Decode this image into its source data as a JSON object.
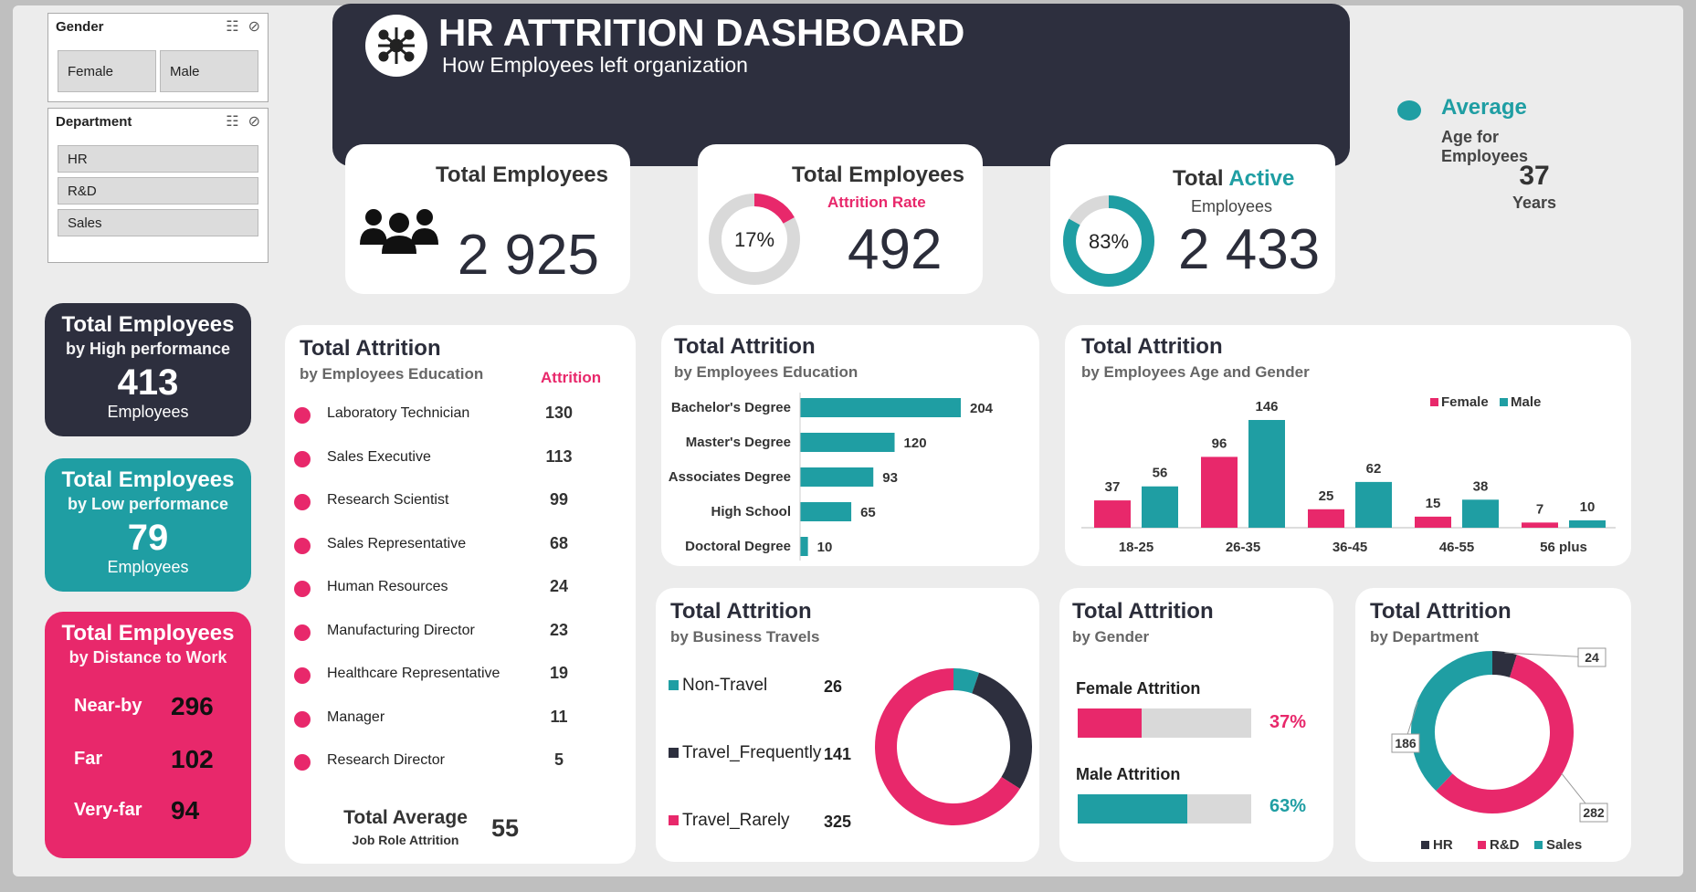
{
  "slicers": {
    "gender": {
      "title": "Gender",
      "options": [
        "Female",
        "Male"
      ]
    },
    "department": {
      "title": "Department",
      "options": [
        "HR",
        "R&D",
        "Sales"
      ]
    }
  },
  "header": {
    "title": "HR ATTRITION DASHBOARD",
    "subtitle": "How Employees left organization",
    "icon": "network-icon"
  },
  "kpi": {
    "total": {
      "title": "Total Employees",
      "value": "2 925",
      "icon": "people-group-icon"
    },
    "attrition": {
      "title": "Total Employees",
      "sub": "Attrition Rate",
      "value": "492",
      "pct": "17%",
      "pct_num": 17
    },
    "active": {
      "title_a": "Total ",
      "title_b": "Active",
      "sub": "Employees",
      "value": "2 433",
      "pct": "83%",
      "pct_num": 83
    }
  },
  "average": {
    "title": "Average",
    "sub": "Age for Employees",
    "value": "37",
    "unit": "Years"
  },
  "left_cards": {
    "high": {
      "title": "Total Employees",
      "sub": "by High performance",
      "value": "413",
      "unit": "Employees"
    },
    "low": {
      "title": "Total Employees",
      "sub": "by Low performance",
      "value": "79",
      "unit": "Employees"
    },
    "distance": {
      "title": "Total Employees",
      "sub": "by Distance to Work",
      "rows": [
        {
          "label": "Near-by",
          "value": "296"
        },
        {
          "label": "Far",
          "value": "102"
        },
        {
          "label": "Very-far",
          "value": "94"
        }
      ]
    }
  },
  "job_role": {
    "title": "Total Attrition",
    "sub": "by Employees Education",
    "col_header": "Attrition",
    "rows": [
      {
        "label": "Laboratory Technician",
        "value": "130"
      },
      {
        "label": "Sales Executive",
        "value": "113"
      },
      {
        "label": "Research Scientist",
        "value": "99"
      },
      {
        "label": "Sales Representative",
        "value": "68"
      },
      {
        "label": "Human Resources",
        "value": "24"
      },
      {
        "label": "Manufacturing Director",
        "value": "23"
      },
      {
        "label": "Healthcare Representative",
        "value": "19"
      },
      {
        "label": "Manager",
        "value": "11"
      },
      {
        "label": "Research Director",
        "value": "5"
      }
    ],
    "footer_title": "Total Average",
    "footer_sub": "Job Role Attrition",
    "footer_value": "55"
  },
  "education": {
    "title": "Total Attrition",
    "sub": "by Employees Education"
  },
  "age_gender": {
    "title": "Total Attrition",
    "sub": "by Employees Age and Gender"
  },
  "travel": {
    "title": "Total Attrition",
    "sub": "by Business Travels"
  },
  "gender": {
    "title": "Total Attrition",
    "sub": "by Gender",
    "female_label": "Female Attrition",
    "female_pct": "37%",
    "female_num": 37,
    "male_label": "Male Attrition",
    "male_pct": "63%",
    "male_num": 63
  },
  "department": {
    "title": "Total Attrition",
    "sub": "by Department"
  },
  "colors": {
    "pink": "#e8286b",
    "teal": "#1f9ea3",
    "navy": "#2d2f3e",
    "grey": "#d9d9d9"
  },
  "chart_data": [
    {
      "type": "bar",
      "orientation": "horizontal",
      "categories": [
        "Bachelor's Degree",
        "Master's Degree",
        "Associates Degree",
        "High School",
        "Doctoral Degree"
      ],
      "values": [
        204,
        120,
        93,
        65,
        10
      ]
    },
    {
      "type": "bar",
      "categories": [
        "18-25",
        "26-35",
        "36-45",
        "46-55",
        "56 plus"
      ],
      "series": [
        {
          "name": "Female",
          "values": [
            37,
            96,
            25,
            15,
            7
          ],
          "color": "#e8286b"
        },
        {
          "name": "Male",
          "values": [
            56,
            146,
            62,
            38,
            10
          ],
          "color": "#1f9ea3"
        }
      ]
    },
    {
      "type": "pie",
      "labels": [
        "Non-Travel",
        "Travel_Frequently",
        "Travel_Rarely"
      ],
      "values": [
        26,
        141,
        325
      ],
      "colors": [
        "#1f9ea3",
        "#2d2f3e",
        "#e8286b"
      ]
    },
    {
      "type": "pie",
      "labels": [
        "HR",
        "R&D",
        "Sales"
      ],
      "values": [
        24,
        282,
        186
      ],
      "colors": [
        "#2d2f3e",
        "#e8286b",
        "#1f9ea3"
      ]
    }
  ]
}
